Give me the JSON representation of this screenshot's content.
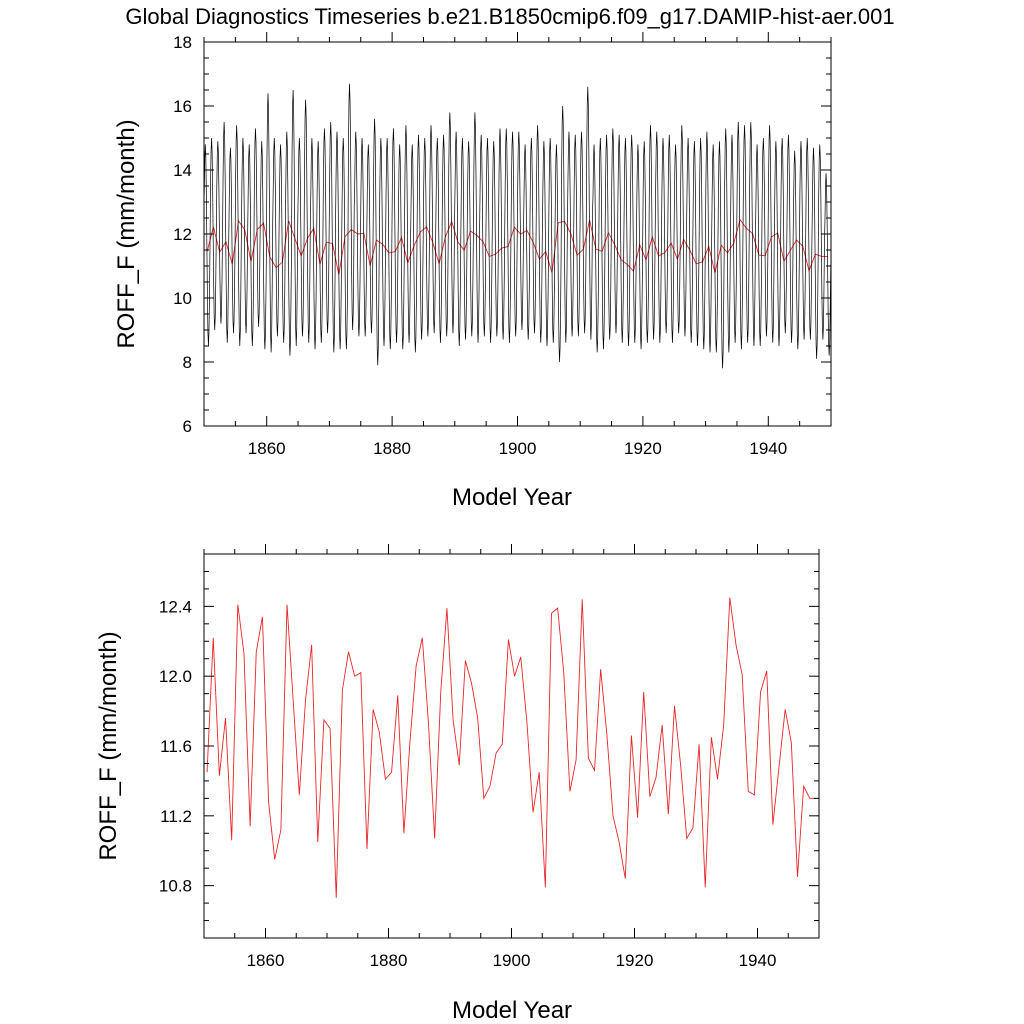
{
  "title": "Global Diagnostics Timeseries b.e21.B1850cmip6.f09_g17.DAMIP-hist-aer.001",
  "colors": {
    "monthly": "#000000",
    "annual": "#e8272a"
  },
  "chart_data": [
    {
      "type": "line",
      "xlabel": "Model Year",
      "ylabel": "ROFF_F (mm/month)",
      "xlim": [
        1850,
        1950
      ],
      "ylim": [
        6,
        18
      ],
      "xticks": [
        1860,
        1880,
        1900,
        1920,
        1940
      ],
      "xtick_labels": [
        "1860",
        "1880",
        "1900",
        "1920",
        "1940"
      ],
      "yticks": [
        6,
        8,
        10,
        12,
        14,
        16,
        18
      ],
      "ytick_labels": [
        "6",
        "8",
        "10",
        "12",
        "14",
        "16",
        "18"
      ],
      "grid": false,
      "monthly_cycle": {
        "years": [
          1850,
          1851,
          1852,
          1853,
          1854,
          1855,
          1856,
          1857,
          1858,
          1859,
          1860,
          1861,
          1862,
          1863,
          1864,
          1865,
          1866,
          1867,
          1868,
          1869,
          1870,
          1871,
          1872,
          1873,
          1874,
          1875,
          1876,
          1877,
          1878,
          1879,
          1880,
          1881,
          1882,
          1883,
          1884,
          1885,
          1886,
          1887,
          1888,
          1889,
          1890,
          1891,
          1892,
          1893,
          1894,
          1895,
          1896,
          1897,
          1898,
          1899,
          1900,
          1901,
          1902,
          1903,
          1904,
          1905,
          1906,
          1907,
          1908,
          1909,
          1910,
          1911,
          1912,
          1913,
          1914,
          1915,
          1916,
          1917,
          1918,
          1919,
          1920,
          1921,
          1922,
          1923,
          1924,
          1925,
          1926,
          1927,
          1928,
          1929,
          1930,
          1931,
          1932,
          1933,
          1934,
          1935,
          1936,
          1937,
          1938,
          1939,
          1940,
          1941,
          1942,
          1943,
          1944,
          1945,
          1946,
          1947,
          1948,
          1949
        ],
        "annual_max": [
          14.8,
          15.0,
          14.9,
          15.5,
          14.7,
          15.4,
          15.0,
          14.8,
          15.3,
          14.9,
          16.4,
          15.0,
          14.8,
          15.2,
          16.5,
          15.0,
          16.2,
          15.0,
          14.9,
          15.3,
          15.5,
          15.2,
          15.0,
          16.7,
          15.2,
          15.0,
          14.8,
          15.6,
          15.0,
          15.0,
          15.3,
          14.8,
          15.4,
          14.8,
          15.1,
          15.0,
          15.4,
          15.0,
          15.1,
          15.8,
          15.2,
          15.0,
          14.9,
          15.8,
          15.1,
          15.0,
          14.9,
          15.3,
          15.3,
          15.2,
          15.2,
          14.8,
          15.0,
          15.4,
          14.9,
          15.0,
          14.8,
          16.0,
          15.2,
          15.1,
          15.2,
          16.6,
          14.8,
          15.0,
          15.1,
          15.3,
          15.1,
          15.0,
          15.1,
          14.8,
          14.9,
          15.4,
          15.2,
          15.0,
          15.1,
          14.8,
          15.4,
          15.0,
          14.9,
          15.0,
          15.2,
          14.8,
          14.9,
          15.3,
          15.1,
          15.5,
          15.4,
          15.5,
          14.8,
          15.0,
          15.4,
          14.9,
          15.0,
          15.1,
          14.6,
          14.9,
          15.0,
          14.7,
          14.8,
          13.9
        ],
        "annual_min": [
          8.5,
          9.0,
          9.2,
          8.6,
          8.9,
          8.5,
          8.9,
          8.5,
          9.1,
          8.4,
          8.3,
          8.8,
          8.6,
          8.2,
          8.5,
          8.8,
          8.6,
          8.4,
          8.6,
          8.9,
          8.3,
          8.4,
          8.4,
          9.0,
          8.8,
          8.8,
          8.9,
          7.9,
          8.5,
          8.4,
          8.6,
          8.4,
          8.6,
          8.3,
          8.7,
          8.8,
          8.9,
          8.6,
          8.8,
          8.9,
          8.5,
          8.7,
          8.8,
          8.6,
          8.8,
          8.6,
          8.8,
          8.7,
          8.6,
          8.8,
          9.0,
          8.7,
          8.9,
          8.6,
          8.5,
          8.6,
          8.0,
          8.6,
          8.8,
          8.8,
          8.9,
          8.7,
          8.3,
          8.4,
          8.7,
          8.9,
          8.6,
          8.5,
          8.6,
          8.4,
          8.6,
          8.7,
          8.6,
          8.9,
          8.6,
          8.9,
          8.8,
          8.6,
          8.5,
          8.4,
          8.3,
          8.3,
          7.8,
          8.3,
          8.6,
          8.4,
          8.6,
          8.5,
          8.5,
          8.8,
          8.6,
          8.5,
          8.9,
          8.6,
          8.4,
          8.7,
          8.7,
          8.1,
          8.7,
          8.2
        ]
      },
      "series": [
        {
          "color": "#e8272a",
          "source": "annual_mean"
        }
      ]
    },
    {
      "type": "line",
      "xlabel": "Model Year",
      "ylabel": "ROFF_F (mm/month)",
      "xlim": [
        1850,
        1950
      ],
      "ylim": [
        10.5,
        12.7
      ],
      "xticks": [
        1860,
        1880,
        1900,
        1920,
        1940
      ],
      "xtick_labels": [
        "1860",
        "1880",
        "1900",
        "1920",
        "1940"
      ],
      "yticks": [
        10.8,
        11.2,
        11.6,
        12.0,
        12.4
      ],
      "ytick_labels": [
        "10.8",
        "11.2",
        "11.6",
        "12.0",
        "12.4"
      ],
      "grid": false,
      "series": [
        {
          "color": "#e8272a",
          "x": [
            1850,
            1851,
            1852,
            1853,
            1854,
            1855,
            1856,
            1857,
            1858,
            1859,
            1860,
            1861,
            1862,
            1863,
            1864,
            1865,
            1866,
            1867,
            1868,
            1869,
            1870,
            1871,
            1872,
            1873,
            1874,
            1875,
            1876,
            1877,
            1878,
            1879,
            1880,
            1881,
            1882,
            1883,
            1884,
            1885,
            1886,
            1887,
            1888,
            1889,
            1890,
            1891,
            1892,
            1893,
            1894,
            1895,
            1896,
            1897,
            1898,
            1899,
            1900,
            1901,
            1902,
            1903,
            1904,
            1905,
            1906,
            1907,
            1908,
            1909,
            1910,
            1911,
            1912,
            1913,
            1914,
            1915,
            1916,
            1917,
            1918,
            1919,
            1920,
            1921,
            1922,
            1923,
            1924,
            1925,
            1926,
            1927,
            1928,
            1929,
            1930,
            1931,
            1932,
            1933,
            1934,
            1935,
            1936,
            1937,
            1938,
            1939,
            1940,
            1941,
            1942,
            1943,
            1944,
            1945,
            1946,
            1947,
            1948,
            1949
          ],
          "y": [
            11.45,
            12.22,
            11.43,
            11.76,
            11.06,
            12.41,
            12.13,
            11.14,
            12.14,
            12.34,
            11.28,
            10.95,
            11.12,
            12.41,
            11.86,
            11.32,
            11.86,
            12.18,
            11.05,
            11.75,
            11.7,
            10.73,
            11.92,
            12.14,
            12.0,
            12.02,
            11.01,
            11.81,
            11.68,
            11.41,
            11.45,
            11.89,
            11.1,
            11.63,
            12.06,
            12.22,
            11.73,
            11.07,
            11.91,
            12.39,
            11.75,
            11.49,
            12.09,
            11.96,
            11.76,
            11.3,
            11.37,
            11.56,
            11.61,
            12.21,
            12.0,
            12.11,
            11.74,
            11.22,
            11.45,
            10.79,
            12.36,
            12.39,
            12.02,
            11.34,
            11.52,
            12.44,
            11.53,
            11.46,
            12.04,
            11.67,
            11.2,
            11.05,
            10.84,
            11.66,
            11.19,
            11.91,
            11.31,
            11.42,
            11.72,
            11.21,
            11.83,
            11.49,
            11.07,
            11.13,
            11.61,
            10.79,
            11.65,
            11.41,
            11.72,
            12.45,
            12.18,
            12.01,
            11.34,
            11.32,
            11.91,
            12.03,
            11.15,
            11.48,
            11.81,
            11.62,
            10.85,
            11.37,
            11.3,
            11.3
          ]
        }
      ]
    }
  ]
}
